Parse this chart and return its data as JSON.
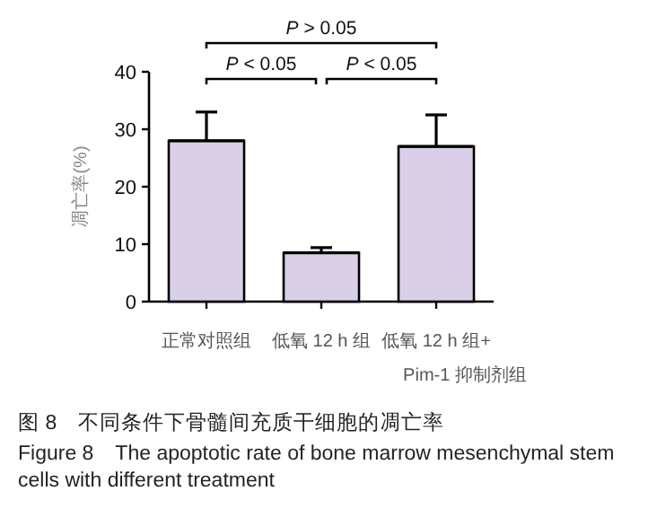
{
  "chart_data": {
    "type": "bar",
    "categories": [
      "正常对照组",
      "低氧 12 h 组",
      "低氧 12 h 组+\nPim-1 抑制剂组"
    ],
    "values": [
      28,
      8.5,
      27
    ],
    "errors": [
      [
        28,
        33
      ],
      [
        8.5,
        9.4
      ],
      [
        27,
        32.5
      ]
    ],
    "color": "#d9d0e8",
    "ylabel": "凋亡率(%)",
    "ylim": [
      0,
      40
    ],
    "yticks": [
      0,
      10,
      20,
      30,
      40
    ],
    "annotations": [
      "P > 0.05",
      "P < 0.05",
      "P < 0.05",
      "图 8　不同条件下骨髓间充质干细胞的凋亡率",
      "Figure 8　The apoptotic rate of bone marrow mesenchymal stem cells with different treatment"
    ]
  }
}
